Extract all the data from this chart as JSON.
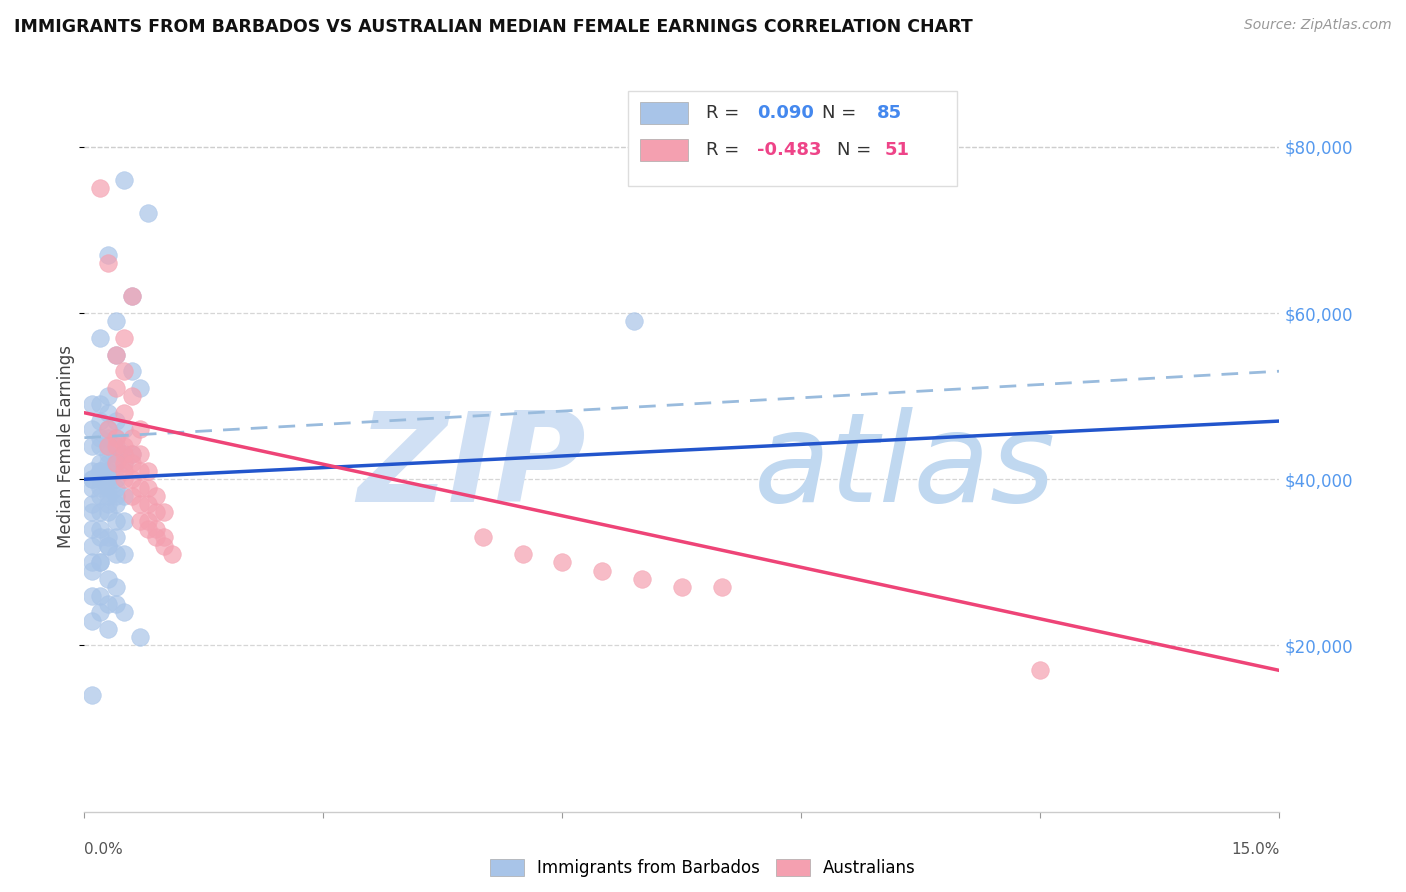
{
  "title": "IMMIGRANTS FROM BARBADOS VS AUSTRALIAN MEDIAN FEMALE EARNINGS CORRELATION CHART",
  "source": "Source: ZipAtlas.com",
  "ylabel": "Median Female Earnings",
  "right_yticks": [
    20000,
    40000,
    60000,
    80000
  ],
  "right_yticklabels": [
    "$20,000",
    "$40,000",
    "$60,000",
    "$80,000"
  ],
  "legend_blue_r": "R =  0.090",
  "legend_blue_n": "N = 85",
  "legend_pink_r": "R = -0.483",
  "legend_pink_n": "N = 51",
  "legend_label_blue": "Immigrants from Barbados",
  "legend_label_pink": "Australians",
  "blue_color": "#a8c4e8",
  "pink_color": "#f4a0b0",
  "blue_line_color": "#2255cc",
  "pink_line_color": "#ee4477",
  "dashed_line_color": "#99bbdd",
  "watermark_zip_color": "#d0e0f4",
  "watermark_atlas_color": "#c0d8f0",
  "background_color": "#ffffff",
  "xlim": [
    0.0,
    0.15
  ],
  "ylim": [
    0,
    88000
  ],
  "grid_yticks": [
    20000,
    40000,
    60000,
    80000
  ],
  "blue_scatter_x": [
    0.005,
    0.008,
    0.003,
    0.006,
    0.004,
    0.002,
    0.004,
    0.006,
    0.007,
    0.003,
    0.002,
    0.001,
    0.003,
    0.004,
    0.002,
    0.001,
    0.003,
    0.005,
    0.004,
    0.003,
    0.002,
    0.003,
    0.004,
    0.002,
    0.001,
    0.003,
    0.004,
    0.005,
    0.006,
    0.005,
    0.003,
    0.002,
    0.004,
    0.003,
    0.002,
    0.001,
    0.002,
    0.003,
    0.004,
    0.002,
    0.001,
    0.003,
    0.004,
    0.002,
    0.001,
    0.003,
    0.004,
    0.005,
    0.002,
    0.001,
    0.003,
    0.004,
    0.002,
    0.001,
    0.003,
    0.004,
    0.005,
    0.002,
    0.001,
    0.003,
    0.004,
    0.002,
    0.001,
    0.003,
    0.004,
    0.005,
    0.002,
    0.001,
    0.003,
    0.004,
    0.002,
    0.001,
    0.003,
    0.004,
    0.005,
    0.002,
    0.001,
    0.003,
    0.007,
    0.001,
    0.002,
    0.003,
    0.001,
    0.069,
    0.001
  ],
  "blue_scatter_y": [
    76000,
    72000,
    67000,
    62000,
    59000,
    57000,
    55000,
    53000,
    51000,
    50000,
    49000,
    49000,
    48000,
    47000,
    47000,
    46000,
    46000,
    46000,
    45000,
    45000,
    45000,
    44000,
    44000,
    44000,
    44000,
    43000,
    43000,
    43000,
    43000,
    42000,
    42000,
    42000,
    42000,
    41000,
    41000,
    41000,
    41000,
    40000,
    40000,
    40000,
    40000,
    39000,
    39000,
    39000,
    39000,
    38000,
    38000,
    38000,
    38000,
    37000,
    37000,
    37000,
    36000,
    36000,
    36000,
    35000,
    35000,
    34000,
    34000,
    33000,
    33000,
    33000,
    32000,
    32000,
    31000,
    31000,
    30000,
    29000,
    28000,
    27000,
    26000,
    26000,
    25000,
    25000,
    24000,
    24000,
    23000,
    22000,
    21000,
    14000,
    30000,
    32000,
    30000,
    59000,
    40000
  ],
  "pink_scatter_x": [
    0.002,
    0.003,
    0.006,
    0.005,
    0.004,
    0.005,
    0.004,
    0.006,
    0.005,
    0.007,
    0.003,
    0.006,
    0.004,
    0.005,
    0.004,
    0.003,
    0.005,
    0.006,
    0.007,
    0.005,
    0.004,
    0.006,
    0.005,
    0.007,
    0.008,
    0.006,
    0.005,
    0.007,
    0.008,
    0.009,
    0.006,
    0.007,
    0.008,
    0.009,
    0.01,
    0.007,
    0.008,
    0.009,
    0.01,
    0.05,
    0.055,
    0.06,
    0.065,
    0.07,
    0.075,
    0.08,
    0.008,
    0.009,
    0.01,
    0.011,
    0.12
  ],
  "pink_scatter_y": [
    75000,
    66000,
    62000,
    57000,
    55000,
    53000,
    51000,
    50000,
    48000,
    46000,
    46000,
    45000,
    45000,
    44000,
    44000,
    44000,
    43000,
    43000,
    43000,
    42000,
    42000,
    42000,
    41000,
    41000,
    41000,
    40000,
    40000,
    39000,
    39000,
    38000,
    38000,
    37000,
    37000,
    36000,
    36000,
    35000,
    35000,
    34000,
    33000,
    33000,
    31000,
    30000,
    29000,
    28000,
    27000,
    27000,
    34000,
    33000,
    32000,
    31000,
    17000
  ],
  "blue_line_x": [
    0.0,
    0.15
  ],
  "blue_line_y": [
    40000,
    47000
  ],
  "pink_line_x": [
    0.0,
    0.15
  ],
  "pink_line_y": [
    48000,
    17000
  ],
  "dashed_line_x": [
    0.0,
    0.15
  ],
  "dashed_line_y": [
    45000,
    53000
  ]
}
